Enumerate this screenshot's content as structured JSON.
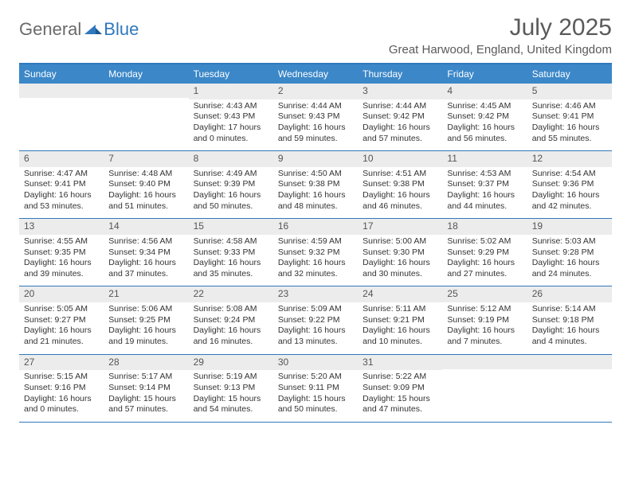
{
  "logo": {
    "general": "General",
    "blue": "Blue"
  },
  "title": "July 2025",
  "location": "Great Harwood, England, United Kingdom",
  "colors": {
    "header_bg": "#3b87c8",
    "border": "#2f78bd",
    "daynum_bg": "#ececec",
    "text": "#333333",
    "title_color": "#5a5a5a"
  },
  "dayHeaders": [
    "Sunday",
    "Monday",
    "Tuesday",
    "Wednesday",
    "Thursday",
    "Friday",
    "Saturday"
  ],
  "weeks": [
    [
      {
        "num": "",
        "sunrise": "",
        "sunset": "",
        "daylight1": "",
        "daylight2": ""
      },
      {
        "num": "",
        "sunrise": "",
        "sunset": "",
        "daylight1": "",
        "daylight2": ""
      },
      {
        "num": "1",
        "sunrise": "Sunrise: 4:43 AM",
        "sunset": "Sunset: 9:43 PM",
        "daylight1": "Daylight: 17 hours",
        "daylight2": "and 0 minutes."
      },
      {
        "num": "2",
        "sunrise": "Sunrise: 4:44 AM",
        "sunset": "Sunset: 9:43 PM",
        "daylight1": "Daylight: 16 hours",
        "daylight2": "and 59 minutes."
      },
      {
        "num": "3",
        "sunrise": "Sunrise: 4:44 AM",
        "sunset": "Sunset: 9:42 PM",
        "daylight1": "Daylight: 16 hours",
        "daylight2": "and 57 minutes."
      },
      {
        "num": "4",
        "sunrise": "Sunrise: 4:45 AM",
        "sunset": "Sunset: 9:42 PM",
        "daylight1": "Daylight: 16 hours",
        "daylight2": "and 56 minutes."
      },
      {
        "num": "5",
        "sunrise": "Sunrise: 4:46 AM",
        "sunset": "Sunset: 9:41 PM",
        "daylight1": "Daylight: 16 hours",
        "daylight2": "and 55 minutes."
      }
    ],
    [
      {
        "num": "6",
        "sunrise": "Sunrise: 4:47 AM",
        "sunset": "Sunset: 9:41 PM",
        "daylight1": "Daylight: 16 hours",
        "daylight2": "and 53 minutes."
      },
      {
        "num": "7",
        "sunrise": "Sunrise: 4:48 AM",
        "sunset": "Sunset: 9:40 PM",
        "daylight1": "Daylight: 16 hours",
        "daylight2": "and 51 minutes."
      },
      {
        "num": "8",
        "sunrise": "Sunrise: 4:49 AM",
        "sunset": "Sunset: 9:39 PM",
        "daylight1": "Daylight: 16 hours",
        "daylight2": "and 50 minutes."
      },
      {
        "num": "9",
        "sunrise": "Sunrise: 4:50 AM",
        "sunset": "Sunset: 9:38 PM",
        "daylight1": "Daylight: 16 hours",
        "daylight2": "and 48 minutes."
      },
      {
        "num": "10",
        "sunrise": "Sunrise: 4:51 AM",
        "sunset": "Sunset: 9:38 PM",
        "daylight1": "Daylight: 16 hours",
        "daylight2": "and 46 minutes."
      },
      {
        "num": "11",
        "sunrise": "Sunrise: 4:53 AM",
        "sunset": "Sunset: 9:37 PM",
        "daylight1": "Daylight: 16 hours",
        "daylight2": "and 44 minutes."
      },
      {
        "num": "12",
        "sunrise": "Sunrise: 4:54 AM",
        "sunset": "Sunset: 9:36 PM",
        "daylight1": "Daylight: 16 hours",
        "daylight2": "and 42 minutes."
      }
    ],
    [
      {
        "num": "13",
        "sunrise": "Sunrise: 4:55 AM",
        "sunset": "Sunset: 9:35 PM",
        "daylight1": "Daylight: 16 hours",
        "daylight2": "and 39 minutes."
      },
      {
        "num": "14",
        "sunrise": "Sunrise: 4:56 AM",
        "sunset": "Sunset: 9:34 PM",
        "daylight1": "Daylight: 16 hours",
        "daylight2": "and 37 minutes."
      },
      {
        "num": "15",
        "sunrise": "Sunrise: 4:58 AM",
        "sunset": "Sunset: 9:33 PM",
        "daylight1": "Daylight: 16 hours",
        "daylight2": "and 35 minutes."
      },
      {
        "num": "16",
        "sunrise": "Sunrise: 4:59 AM",
        "sunset": "Sunset: 9:32 PM",
        "daylight1": "Daylight: 16 hours",
        "daylight2": "and 32 minutes."
      },
      {
        "num": "17",
        "sunrise": "Sunrise: 5:00 AM",
        "sunset": "Sunset: 9:30 PM",
        "daylight1": "Daylight: 16 hours",
        "daylight2": "and 30 minutes."
      },
      {
        "num": "18",
        "sunrise": "Sunrise: 5:02 AM",
        "sunset": "Sunset: 9:29 PM",
        "daylight1": "Daylight: 16 hours",
        "daylight2": "and 27 minutes."
      },
      {
        "num": "19",
        "sunrise": "Sunrise: 5:03 AM",
        "sunset": "Sunset: 9:28 PM",
        "daylight1": "Daylight: 16 hours",
        "daylight2": "and 24 minutes."
      }
    ],
    [
      {
        "num": "20",
        "sunrise": "Sunrise: 5:05 AM",
        "sunset": "Sunset: 9:27 PM",
        "daylight1": "Daylight: 16 hours",
        "daylight2": "and 21 minutes."
      },
      {
        "num": "21",
        "sunrise": "Sunrise: 5:06 AM",
        "sunset": "Sunset: 9:25 PM",
        "daylight1": "Daylight: 16 hours",
        "daylight2": "and 19 minutes."
      },
      {
        "num": "22",
        "sunrise": "Sunrise: 5:08 AM",
        "sunset": "Sunset: 9:24 PM",
        "daylight1": "Daylight: 16 hours",
        "daylight2": "and 16 minutes."
      },
      {
        "num": "23",
        "sunrise": "Sunrise: 5:09 AM",
        "sunset": "Sunset: 9:22 PM",
        "daylight1": "Daylight: 16 hours",
        "daylight2": "and 13 minutes."
      },
      {
        "num": "24",
        "sunrise": "Sunrise: 5:11 AM",
        "sunset": "Sunset: 9:21 PM",
        "daylight1": "Daylight: 16 hours",
        "daylight2": "and 10 minutes."
      },
      {
        "num": "25",
        "sunrise": "Sunrise: 5:12 AM",
        "sunset": "Sunset: 9:19 PM",
        "daylight1": "Daylight: 16 hours",
        "daylight2": "and 7 minutes."
      },
      {
        "num": "26",
        "sunrise": "Sunrise: 5:14 AM",
        "sunset": "Sunset: 9:18 PM",
        "daylight1": "Daylight: 16 hours",
        "daylight2": "and 4 minutes."
      }
    ],
    [
      {
        "num": "27",
        "sunrise": "Sunrise: 5:15 AM",
        "sunset": "Sunset: 9:16 PM",
        "daylight1": "Daylight: 16 hours",
        "daylight2": "and 0 minutes."
      },
      {
        "num": "28",
        "sunrise": "Sunrise: 5:17 AM",
        "sunset": "Sunset: 9:14 PM",
        "daylight1": "Daylight: 15 hours",
        "daylight2": "and 57 minutes."
      },
      {
        "num": "29",
        "sunrise": "Sunrise: 5:19 AM",
        "sunset": "Sunset: 9:13 PM",
        "daylight1": "Daylight: 15 hours",
        "daylight2": "and 54 minutes."
      },
      {
        "num": "30",
        "sunrise": "Sunrise: 5:20 AM",
        "sunset": "Sunset: 9:11 PM",
        "daylight1": "Daylight: 15 hours",
        "daylight2": "and 50 minutes."
      },
      {
        "num": "31",
        "sunrise": "Sunrise: 5:22 AM",
        "sunset": "Sunset: 9:09 PM",
        "daylight1": "Daylight: 15 hours",
        "daylight2": "and 47 minutes."
      },
      {
        "num": "",
        "sunrise": "",
        "sunset": "",
        "daylight1": "",
        "daylight2": ""
      },
      {
        "num": "",
        "sunrise": "",
        "sunset": "",
        "daylight1": "",
        "daylight2": ""
      }
    ]
  ]
}
